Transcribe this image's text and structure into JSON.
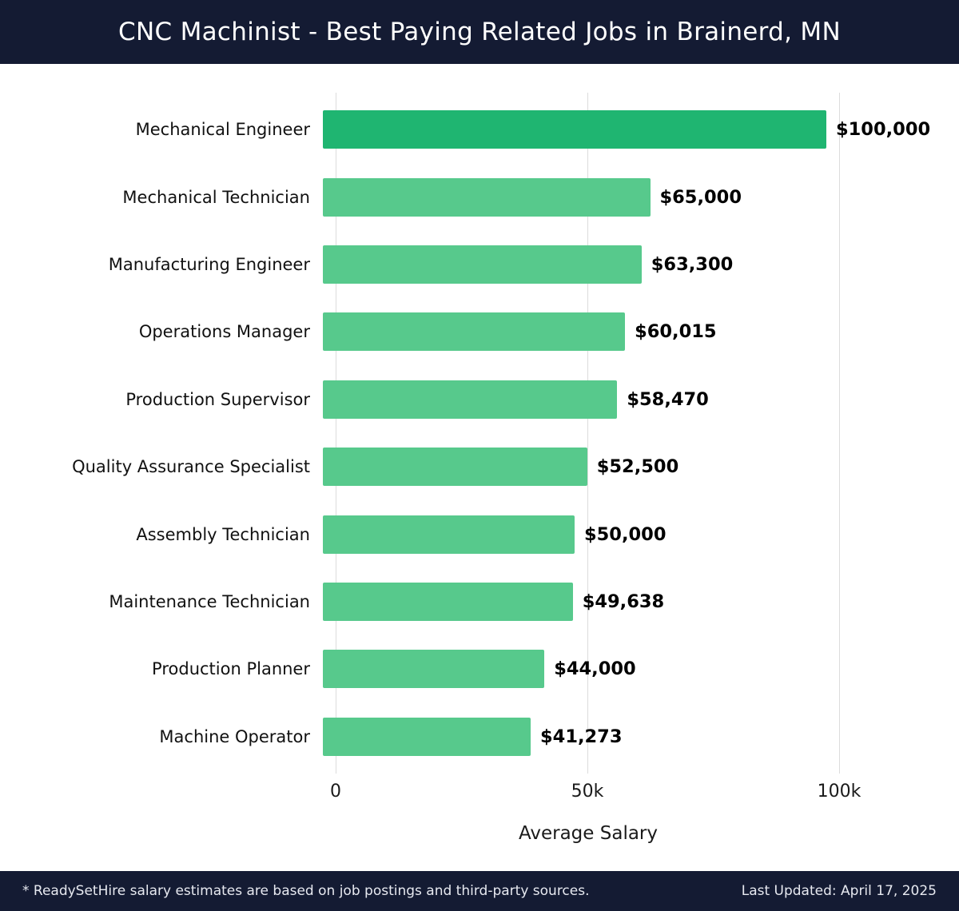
{
  "header": {
    "title": "CNC Machinist - Best Paying Related Jobs in Brainerd, MN"
  },
  "chart_data": {
    "type": "bar",
    "orientation": "horizontal",
    "title": "CNC Machinist - Best Paying Related Jobs in Brainerd, MN",
    "categories": [
      "Mechanical Engineer",
      "Mechanical Technician",
      "Manufacturing Engineer",
      "Operations Manager",
      "Production Supervisor",
      "Quality Assurance Specialist",
      "Assembly Technician",
      "Maintenance Technician",
      "Production Planner",
      "Machine Operator"
    ],
    "values": [
      100000,
      65000,
      63300,
      60015,
      58470,
      52500,
      50000,
      49638,
      44000,
      41273
    ],
    "value_labels": [
      "$100,000",
      "$65,000",
      "$63,300",
      "$60,015",
      "$58,470",
      "$52,500",
      "$50,000",
      "$49,638",
      "$44,000",
      "$41,273"
    ],
    "xlabel": "Average Salary",
    "ylabel": "",
    "xlim": [
      0,
      100000
    ],
    "xticks": [
      {
        "value": 0,
        "label": "0"
      },
      {
        "value": 50000,
        "label": "50k"
      },
      {
        "value": 100000,
        "label": "100k"
      }
    ],
    "grid": true,
    "legend": false,
    "highlight_index": 0,
    "colors": {
      "bar_highlight": "#1fb571",
      "bar_default": "#57c98c",
      "grid": "#dcdcdc"
    }
  },
  "colors": {
    "band": "#141b33"
  },
  "footer": {
    "note": "* ReadySetHire salary estimates are based on job postings and third-party sources.",
    "last_updated": "Last Updated: April 17, 2025"
  }
}
